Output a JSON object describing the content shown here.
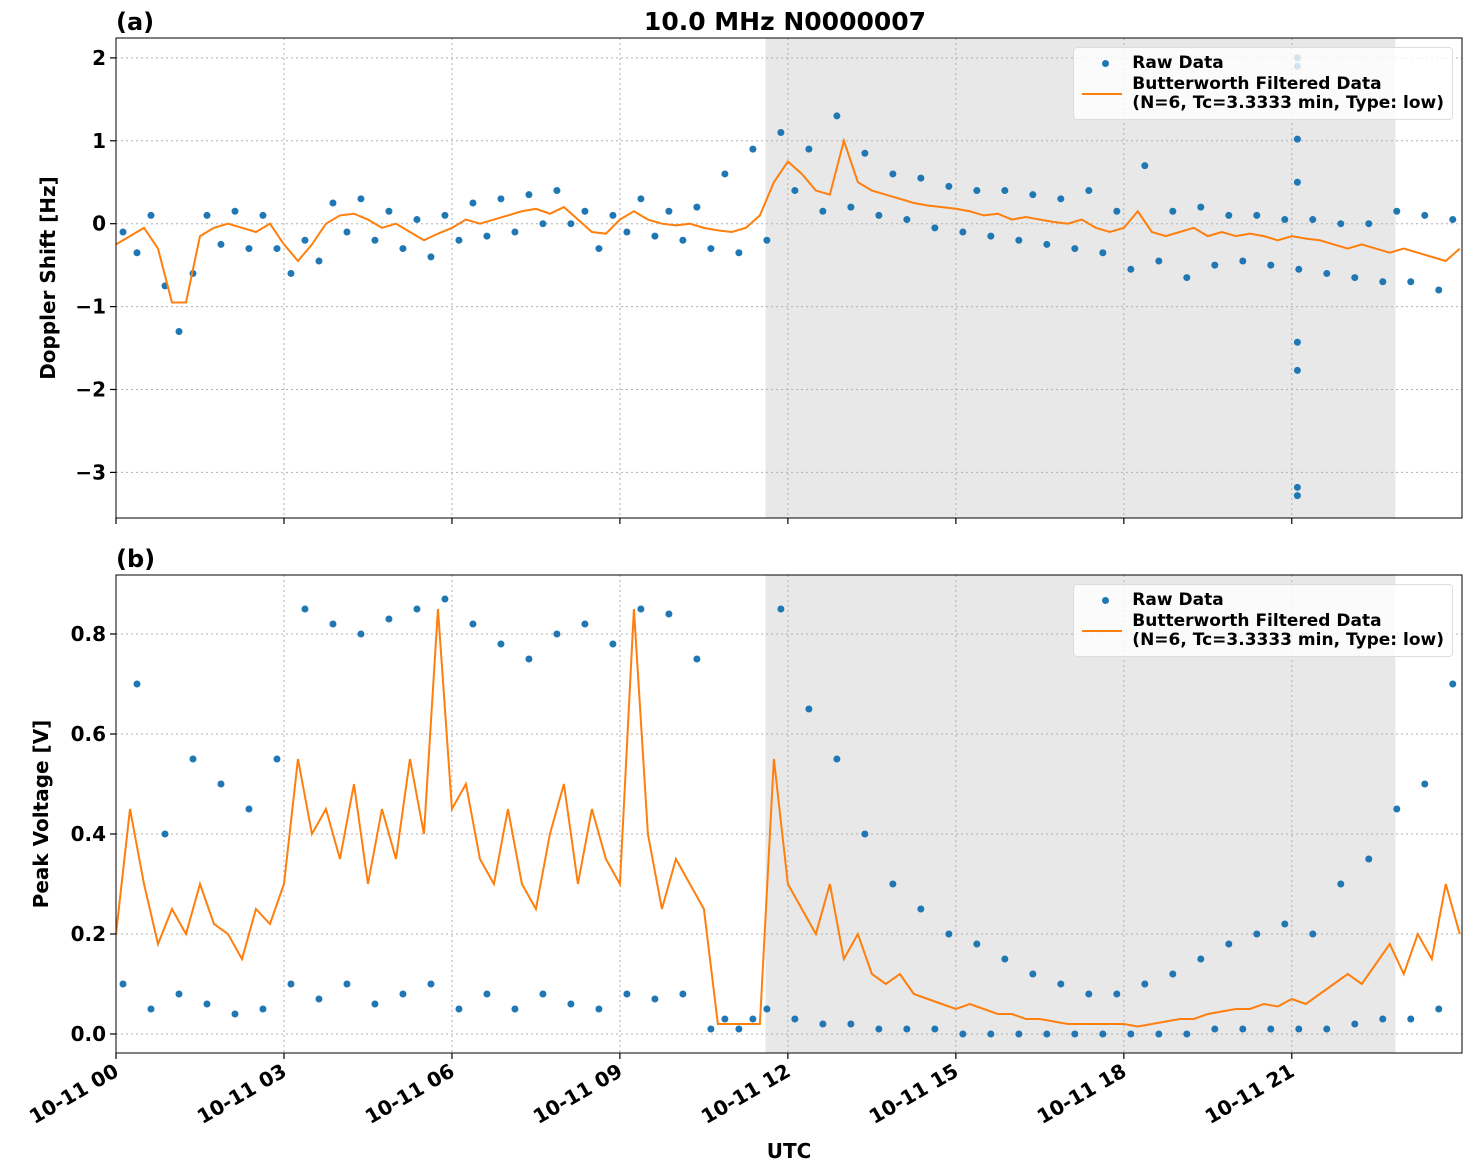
{
  "title": "10.0 MHz N0000007",
  "chart_data": [
    {
      "type": "line",
      "label": "(a)",
      "ylabel": "Doppler Shift [Hz]",
      "xlim": [
        0,
        24.04
      ],
      "ylim": [
        -3.55,
        2.24
      ],
      "grid": true,
      "legend": "upper right",
      "show_xtick_labels": false,
      "shaded_span": [
        11.6,
        22.85
      ],
      "shade_color": "#e8e8e8",
      "yticks": [
        {
          "value": -3,
          "label": "−3"
        },
        {
          "value": -2,
          "label": "−2"
        },
        {
          "value": -1,
          "label": "−1"
        },
        0,
        1,
        2
      ],
      "xticks": [
        {
          "value": 0,
          "label": "10-11 00"
        },
        {
          "value": 3,
          "label": "10-11 03"
        },
        {
          "value": 6,
          "label": "10-11 06"
        },
        {
          "value": 9,
          "label": "10-11 09"
        },
        {
          "value": 12,
          "label": "10-11 12"
        },
        {
          "value": 15,
          "label": "10-11 15"
        },
        {
          "value": 18,
          "label": "10-11 18"
        },
        {
          "value": 21,
          "label": "10-11 21"
        }
      ],
      "series": [
        {
          "name": "Raw Data",
          "type": "scatter",
          "color": "#1f77b4",
          "x": [
            0.125,
            0.375,
            0.625,
            0.875,
            1.125,
            1.375,
            1.625,
            1.875,
            2.125,
            2.375,
            2.625,
            2.875,
            3.125,
            3.375,
            3.625,
            3.875,
            4.125,
            4.375,
            4.625,
            4.875,
            5.125,
            5.375,
            5.625,
            5.875,
            6.125,
            6.375,
            6.625,
            6.875,
            7.125,
            7.375,
            7.625,
            7.875,
            8.125,
            8.375,
            8.625,
            8.875,
            9.125,
            9.375,
            9.625,
            9.875,
            10.125,
            10.375,
            10.625,
            10.875,
            11.125,
            11.375,
            11.625,
            11.875,
            12.125,
            12.375,
            12.625,
            12.875,
            13.125,
            13.375,
            13.625,
            13.875,
            14.125,
            14.375,
            14.625,
            14.875,
            15.125,
            15.375,
            15.625,
            15.875,
            16.125,
            16.375,
            16.625,
            16.875,
            17.125,
            17.375,
            17.625,
            17.875,
            18.125,
            18.375,
            18.625,
            18.875,
            19.125,
            19.375,
            19.625,
            19.875,
            20.125,
            20.375,
            20.625,
            20.875,
            21.125,
            21.375,
            21.625,
            21.875,
            22.125,
            22.375,
            22.625,
            22.875,
            23.125,
            23.375,
            23.625,
            23.875,
            21.1,
            21.1,
            21.1,
            21.1,
            21.1,
            21.1,
            21.1,
            21.1
          ],
          "values": [
            -0.1,
            -0.35,
            0.1,
            -0.75,
            -1.3,
            -0.6,
            0.1,
            -0.25,
            0.15,
            -0.3,
            0.1,
            -0.3,
            -0.6,
            -0.2,
            -0.45,
            0.25,
            -0.1,
            0.3,
            -0.2,
            0.15,
            -0.3,
            0.05,
            -0.4,
            0.1,
            -0.2,
            0.25,
            -0.15,
            0.3,
            -0.1,
            0.35,
            0.0,
            0.4,
            0.0,
            0.15,
            -0.3,
            0.1,
            -0.1,
            0.3,
            -0.15,
            0.15,
            -0.2,
            0.2,
            -0.3,
            0.6,
            -0.35,
            0.9,
            -0.2,
            1.1,
            0.4,
            0.9,
            0.15,
            1.3,
            0.2,
            0.85,
            0.1,
            0.6,
            0.05,
            0.55,
            -0.05,
            0.45,
            -0.1,
            0.4,
            -0.15,
            0.4,
            -0.2,
            0.35,
            -0.25,
            0.3,
            -0.3,
            0.4,
            -0.35,
            0.15,
            -0.55,
            0.7,
            -0.45,
            0.15,
            -0.65,
            0.2,
            -0.5,
            0.1,
            -0.45,
            0.1,
            -0.5,
            0.05,
            -0.55,
            0.05,
            -0.6,
            0.0,
            -0.65,
            0.0,
            -0.7,
            0.15,
            -0.7,
            0.1,
            -0.8,
            0.05,
            2.0,
            1.9,
            1.02,
            0.5,
            -1.43,
            -1.77,
            -3.18,
            -3.28
          ]
        },
        {
          "name": "Butterworth Filtered Data\n(N=6, Tc=3.3333 min, Type: low)",
          "type": "line",
          "color": "#ff7f0e",
          "x": [
            0,
            0.25,
            0.5,
            0.75,
            1,
            1.25,
            1.5,
            1.75,
            2,
            2.25,
            2.5,
            2.75,
            3,
            3.25,
            3.5,
            3.75,
            4,
            4.25,
            4.5,
            4.75,
            5,
            5.25,
            5.5,
            5.75,
            6,
            6.25,
            6.5,
            6.75,
            7,
            7.25,
            7.5,
            7.75,
            8,
            8.25,
            8.5,
            8.75,
            9,
            9.25,
            9.5,
            9.75,
            10,
            10.25,
            10.5,
            10.75,
            11,
            11.25,
            11.5,
            11.75,
            12,
            12.25,
            12.5,
            12.75,
            13,
            13.25,
            13.5,
            13.75,
            14,
            14.25,
            14.5,
            14.75,
            15,
            15.25,
            15.5,
            15.75,
            16,
            16.25,
            16.5,
            16.75,
            17,
            17.25,
            17.5,
            17.75,
            18,
            18.25,
            18.5,
            18.75,
            19,
            19.25,
            19.5,
            19.75,
            20,
            20.25,
            20.5,
            20.75,
            21,
            21.25,
            21.5,
            21.75,
            22,
            22.25,
            22.5,
            22.75,
            23,
            23.25,
            23.5,
            23.75,
            24
          ],
          "values": [
            -0.25,
            -0.15,
            -0.05,
            -0.3,
            -0.95,
            -0.95,
            -0.15,
            -0.05,
            0.0,
            -0.05,
            -0.1,
            0.0,
            -0.25,
            -0.45,
            -0.25,
            0.0,
            0.1,
            0.12,
            0.05,
            -0.05,
            0.0,
            -0.1,
            -0.2,
            -0.12,
            -0.05,
            0.05,
            0.0,
            0.05,
            0.1,
            0.15,
            0.18,
            0.12,
            0.2,
            0.05,
            -0.1,
            -0.12,
            0.05,
            0.15,
            0.05,
            0.0,
            -0.02,
            0.0,
            -0.05,
            -0.08,
            -0.1,
            -0.05,
            0.1,
            0.5,
            0.75,
            0.6,
            0.4,
            0.35,
            1.0,
            0.5,
            0.4,
            0.35,
            0.3,
            0.25,
            0.22,
            0.2,
            0.18,
            0.15,
            0.1,
            0.12,
            0.05,
            0.08,
            0.05,
            0.02,
            0.0,
            0.05,
            -0.05,
            -0.1,
            -0.05,
            0.15,
            -0.1,
            -0.15,
            -0.1,
            -0.05,
            -0.15,
            -0.1,
            -0.15,
            -0.12,
            -0.15,
            -0.2,
            -0.15,
            -0.18,
            -0.2,
            -0.25,
            -0.3,
            -0.25,
            -0.3,
            -0.35,
            -0.3,
            -0.35,
            -0.4,
            -0.45,
            -0.3
          ]
        }
      ]
    },
    {
      "type": "line",
      "label": "(b)",
      "ylabel": "Peak Voltage [V]",
      "xlabel": "UTC",
      "xlim": [
        0,
        24.04
      ],
      "ylim": [
        -0.038,
        0.918
      ],
      "grid": true,
      "legend": "upper right",
      "show_xtick_labels": true,
      "shaded_span": [
        11.6,
        22.85
      ],
      "shade_color": "#e8e8e8",
      "yticks": [
        {
          "value": 0,
          "label": "0.0"
        },
        0.2,
        0.4,
        0.6,
        0.8
      ],
      "xticks": [
        {
          "value": 0,
          "label": "10-11 00"
        },
        {
          "value": 3,
          "label": "10-11 03"
        },
        {
          "value": 6,
          "label": "10-11 06"
        },
        {
          "value": 9,
          "label": "10-11 09"
        },
        {
          "value": 12,
          "label": "10-11 12"
        },
        {
          "value": 15,
          "label": "10-11 15"
        },
        {
          "value": 18,
          "label": "10-11 18"
        },
        {
          "value": 21,
          "label": "10-11 21"
        }
      ],
      "series": [
        {
          "name": "Raw Data",
          "type": "scatter",
          "color": "#1f77b4",
          "x": [
            0.125,
            0.375,
            0.625,
            0.875,
            1.125,
            1.375,
            1.625,
            1.875,
            2.125,
            2.375,
            2.625,
            2.875,
            3.125,
            3.375,
            3.625,
            3.875,
            4.125,
            4.375,
            4.625,
            4.875,
            5.125,
            5.375,
            5.625,
            5.875,
            6.125,
            6.375,
            6.625,
            6.875,
            7.125,
            7.375,
            7.625,
            7.875,
            8.125,
            8.375,
            8.625,
            8.875,
            9.125,
            9.375,
            9.625,
            9.875,
            10.125,
            10.375,
            10.625,
            10.875,
            11.125,
            11.375,
            11.625,
            11.875,
            12.125,
            12.375,
            12.625,
            12.875,
            13.125,
            13.375,
            13.625,
            13.875,
            14.125,
            14.375,
            14.625,
            14.875,
            15.125,
            15.375,
            15.625,
            15.875,
            16.125,
            16.375,
            16.625,
            16.875,
            17.125,
            17.375,
            17.625,
            17.875,
            18.125,
            18.375,
            18.625,
            18.875,
            19.125,
            19.375,
            19.625,
            19.875,
            20.125,
            20.375,
            20.625,
            20.875,
            21.125,
            21.375,
            21.625,
            21.875,
            22.125,
            22.375,
            22.625,
            22.875,
            23.125,
            23.375,
            23.625,
            23.875
          ],
          "values": [
            0.1,
            0.7,
            0.05,
            0.4,
            0.08,
            0.55,
            0.06,
            0.5,
            0.04,
            0.45,
            0.05,
            0.55,
            0.1,
            0.85,
            0.07,
            0.82,
            0.1,
            0.8,
            0.06,
            0.83,
            0.08,
            0.85,
            0.1,
            0.87,
            0.05,
            0.82,
            0.08,
            0.78,
            0.05,
            0.75,
            0.08,
            0.8,
            0.06,
            0.82,
            0.05,
            0.78,
            0.08,
            0.85,
            0.07,
            0.84,
            0.08,
            0.75,
            0.01,
            0.03,
            0.01,
            0.03,
            0.05,
            0.85,
            0.03,
            0.65,
            0.02,
            0.55,
            0.02,
            0.4,
            0.01,
            0.3,
            0.01,
            0.25,
            0.01,
            0.2,
            0.0,
            0.18,
            0.0,
            0.15,
            0.0,
            0.12,
            0.0,
            0.1,
            0.0,
            0.08,
            0.0,
            0.08,
            0.0,
            0.1,
            0.0,
            0.12,
            0.0,
            0.15,
            0.01,
            0.18,
            0.01,
            0.2,
            0.01,
            0.22,
            0.01,
            0.2,
            0.01,
            0.3,
            0.02,
            0.35,
            0.03,
            0.45,
            0.03,
            0.5,
            0.05,
            0.7
          ]
        },
        {
          "name": "Butterworth Filtered Data\n(N=6, Tc=3.3333 min, Type: low)",
          "type": "line",
          "color": "#ff7f0e",
          "x": [
            0,
            0.25,
            0.5,
            0.75,
            1,
            1.25,
            1.5,
            1.75,
            2,
            2.25,
            2.5,
            2.75,
            3,
            3.25,
            3.5,
            3.75,
            4,
            4.25,
            4.5,
            4.75,
            5,
            5.25,
            5.5,
            5.75,
            6,
            6.25,
            6.5,
            6.75,
            7,
            7.25,
            7.5,
            7.75,
            8,
            8.25,
            8.5,
            8.75,
            9,
            9.25,
            9.5,
            9.75,
            10,
            10.25,
            10.5,
            10.75,
            11,
            11.25,
            11.5,
            11.75,
            12,
            12.25,
            12.5,
            12.75,
            13,
            13.25,
            13.5,
            13.75,
            14,
            14.25,
            14.5,
            14.75,
            15,
            15.25,
            15.5,
            15.75,
            16,
            16.25,
            16.5,
            16.75,
            17,
            17.25,
            17.5,
            17.75,
            18,
            18.25,
            18.5,
            18.75,
            19,
            19.25,
            19.5,
            19.75,
            20,
            20.25,
            20.5,
            20.75,
            21,
            21.25,
            21.5,
            21.75,
            22,
            22.25,
            22.5,
            22.75,
            23,
            23.25,
            23.5,
            23.75,
            24
          ],
          "values": [
            0.2,
            0.45,
            0.3,
            0.18,
            0.25,
            0.2,
            0.3,
            0.22,
            0.2,
            0.15,
            0.25,
            0.22,
            0.3,
            0.55,
            0.4,
            0.45,
            0.35,
            0.5,
            0.3,
            0.45,
            0.35,
            0.55,
            0.4,
            0.85,
            0.45,
            0.5,
            0.35,
            0.3,
            0.45,
            0.3,
            0.25,
            0.4,
            0.5,
            0.3,
            0.45,
            0.35,
            0.3,
            0.85,
            0.4,
            0.25,
            0.35,
            0.3,
            0.25,
            0.02,
            0.02,
            0.02,
            0.02,
            0.55,
            0.3,
            0.25,
            0.2,
            0.3,
            0.15,
            0.2,
            0.12,
            0.1,
            0.12,
            0.08,
            0.07,
            0.06,
            0.05,
            0.06,
            0.05,
            0.04,
            0.04,
            0.03,
            0.03,
            0.025,
            0.02,
            0.02,
            0.02,
            0.02,
            0.02,
            0.015,
            0.02,
            0.025,
            0.03,
            0.03,
            0.04,
            0.045,
            0.05,
            0.05,
            0.06,
            0.055,
            0.07,
            0.06,
            0.08,
            0.1,
            0.12,
            0.1,
            0.14,
            0.18,
            0.12,
            0.2,
            0.15,
            0.3,
            0.2
          ]
        }
      ]
    }
  ]
}
